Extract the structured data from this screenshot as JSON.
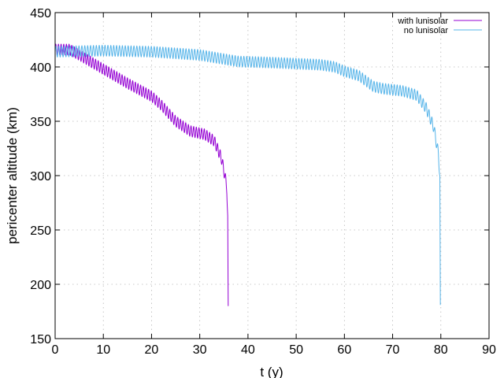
{
  "chart_data": {
    "type": "line",
    "title": "",
    "xlabel": "t (y)",
    "ylabel": "pericenter altitude (km)",
    "xlim": [
      0,
      90
    ],
    "ylim": [
      150,
      450
    ],
    "xticks": [
      0,
      10,
      20,
      30,
      40,
      50,
      60,
      70,
      80,
      90
    ],
    "yticks": [
      150,
      200,
      250,
      300,
      350,
      400,
      450
    ],
    "xtick_labels": [
      "0",
      "10",
      "20",
      "30",
      "40",
      "50",
      "60",
      "70",
      "80",
      "90"
    ],
    "ytick_labels": [
      "150",
      "200",
      "250",
      "300",
      "350",
      "400",
      "450"
    ],
    "grid": true,
    "legend_position": "top-right",
    "series": [
      {
        "name": "with lunisolar",
        "color": "#9400d3",
        "oscillation_amplitude_km": 5,
        "oscillation_period_y": 0.55,
        "end_x": 35.9,
        "end_y": 180,
        "trend": [
          [
            0,
            416
          ],
          [
            3,
            416
          ],
          [
            5,
            411
          ],
          [
            10,
            398
          ],
          [
            15,
            385
          ],
          [
            20,
            373
          ],
          [
            22,
            365
          ],
          [
            25,
            350
          ],
          [
            28,
            341
          ],
          [
            31,
            338
          ],
          [
            33,
            332
          ],
          [
            34.5,
            316
          ],
          [
            35.2,
            300
          ],
          [
            35.6,
            290
          ],
          [
            35.8,
            260
          ],
          [
            35.9,
            180
          ]
        ]
      },
      {
        "name": "no lunisolar",
        "color": "#56b4e9",
        "oscillation_amplitude_km": 5,
        "oscillation_period_y": 0.6,
        "end_x": 79.9,
        "end_y": 181,
        "trend": [
          [
            0,
            414
          ],
          [
            10,
            415
          ],
          [
            20,
            414
          ],
          [
            30,
            411
          ],
          [
            38,
            405
          ],
          [
            45,
            404
          ],
          [
            55,
            402
          ],
          [
            58,
            400
          ],
          [
            60,
            396
          ],
          [
            63,
            392
          ],
          [
            66,
            382
          ],
          [
            68,
            380
          ],
          [
            72,
            378
          ],
          [
            75,
            374
          ],
          [
            77,
            362
          ],
          [
            78.5,
            345
          ],
          [
            79.5,
            320
          ],
          [
            79.8,
            300
          ],
          [
            79.9,
            181
          ]
        ]
      }
    ]
  }
}
